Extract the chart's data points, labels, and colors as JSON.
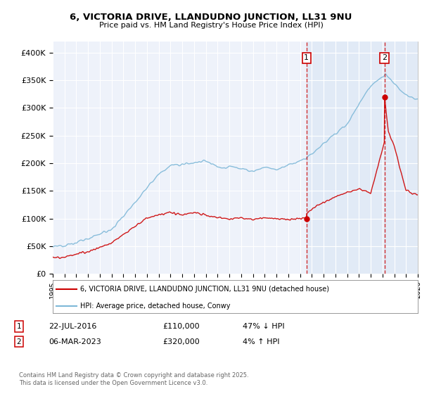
{
  "title_line1": "6, VICTORIA DRIVE, LLANDUDNO JUNCTION, LL31 9NU",
  "title_line2": "Price paid vs. HM Land Registry's House Price Index (HPI)",
  "ylim": [
    0,
    420000
  ],
  "ytick_labels": [
    "£0",
    "£50K",
    "£100K",
    "£150K",
    "£200K",
    "£250K",
    "£300K",
    "£350K",
    "£400K"
  ],
  "ytick_values": [
    0,
    50000,
    100000,
    150000,
    200000,
    250000,
    300000,
    350000,
    400000
  ],
  "legend_line1": "6, VICTORIA DRIVE, LLANDUDNO JUNCTION, LL31 9NU (detached house)",
  "legend_line2": "HPI: Average price, detached house, Conwy",
  "sale1_date": "22-JUL-2016",
  "sale1_price": "£110,000",
  "sale1_hpi": "47% ↓ HPI",
  "sale2_date": "06-MAR-2023",
  "sale2_price": "£320,000",
  "sale2_hpi": "4% ↑ HPI",
  "hpi_color": "#7eb8d8",
  "price_color": "#cc0000",
  "marker1_year": 2016.55,
  "marker2_year": 2023.18,
  "background_color": "#eef2fa",
  "grid_color": "#ffffff",
  "shade_color": "#dce8f5",
  "footer": "Contains HM Land Registry data © Crown copyright and database right 2025.\nThis data is licensed under the Open Government Licence v3.0."
}
